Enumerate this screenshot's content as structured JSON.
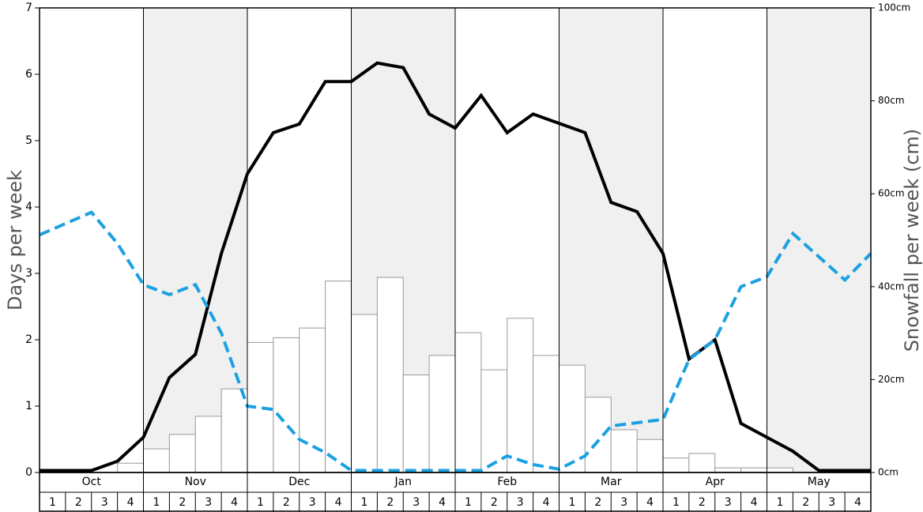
{
  "chart_data": {
    "type": "bar",
    "ylabel": "Days per week",
    "y2label": "Snowfall per week (cm)",
    "months": [
      "Oct",
      "Nov",
      "Dec",
      "Jan",
      "Feb",
      "Mar",
      "Apr",
      "May"
    ],
    "weeks": [
      "1",
      "2",
      "3",
      "4"
    ],
    "ylim": [
      0,
      7
    ],
    "yticks": [
      0,
      1,
      2,
      3,
      4,
      5,
      6,
      7
    ],
    "y2lim": [
      0,
      100
    ],
    "y2ticks": [
      {
        "value": 0,
        "label": "0cm"
      },
      {
        "value": 20,
        "label": "20cm"
      },
      {
        "value": 40,
        "label": "40cm"
      },
      {
        "value": 60,
        "label": "60cm"
      },
      {
        "value": 80,
        "label": "80cm"
      },
      {
        "value": 100,
        "label": "100cm"
      }
    ],
    "series": [
      {
        "type": "bar",
        "axis": "y2",
        "color": "#ffffff",
        "values": [
          0,
          0,
          0,
          2,
          5.1,
          8.2,
          12.1,
          18,
          28,
          29,
          31.1,
          41.2,
          34,
          42,
          21,
          25.2,
          30.1,
          22.1,
          33.2,
          25.2,
          23.1,
          16.2,
          9.2,
          7.1,
          3.1,
          4.1,
          1,
          1,
          1,
          0,
          0,
          0
        ]
      },
      {
        "type": "line",
        "color": "#000000",
        "values": [
          0.03,
          0.03,
          0.03,
          0.17,
          0.53,
          1.43,
          1.78,
          3.3,
          4.5,
          5.12,
          5.25,
          5.89,
          5.89,
          6.17,
          6.1,
          5.4,
          5.19,
          5.68,
          5.12,
          5.4,
          5.26,
          5.12,
          4.07,
          3.93,
          3.3,
          1.71,
          2.0,
          0.74,
          0.53,
          0.32,
          0.03,
          0.03,
          0.03
        ]
      },
      {
        "type": "dashed",
        "color": "#1ba1e2",
        "values": [
          3.58,
          3.75,
          3.92,
          3.45,
          2.83,
          2.68,
          2.83,
          2.1,
          1.0,
          0.95,
          0.5,
          0.3,
          0.03,
          0.03,
          0.03,
          0.03,
          0.03,
          0.03,
          0.25,
          0.12,
          0.05,
          0.25,
          0.7,
          0.75,
          0.8,
          1.7,
          2.0,
          2.8,
          2.95,
          3.6,
          3.25,
          2.9,
          3.3
        ]
      }
    ]
  }
}
